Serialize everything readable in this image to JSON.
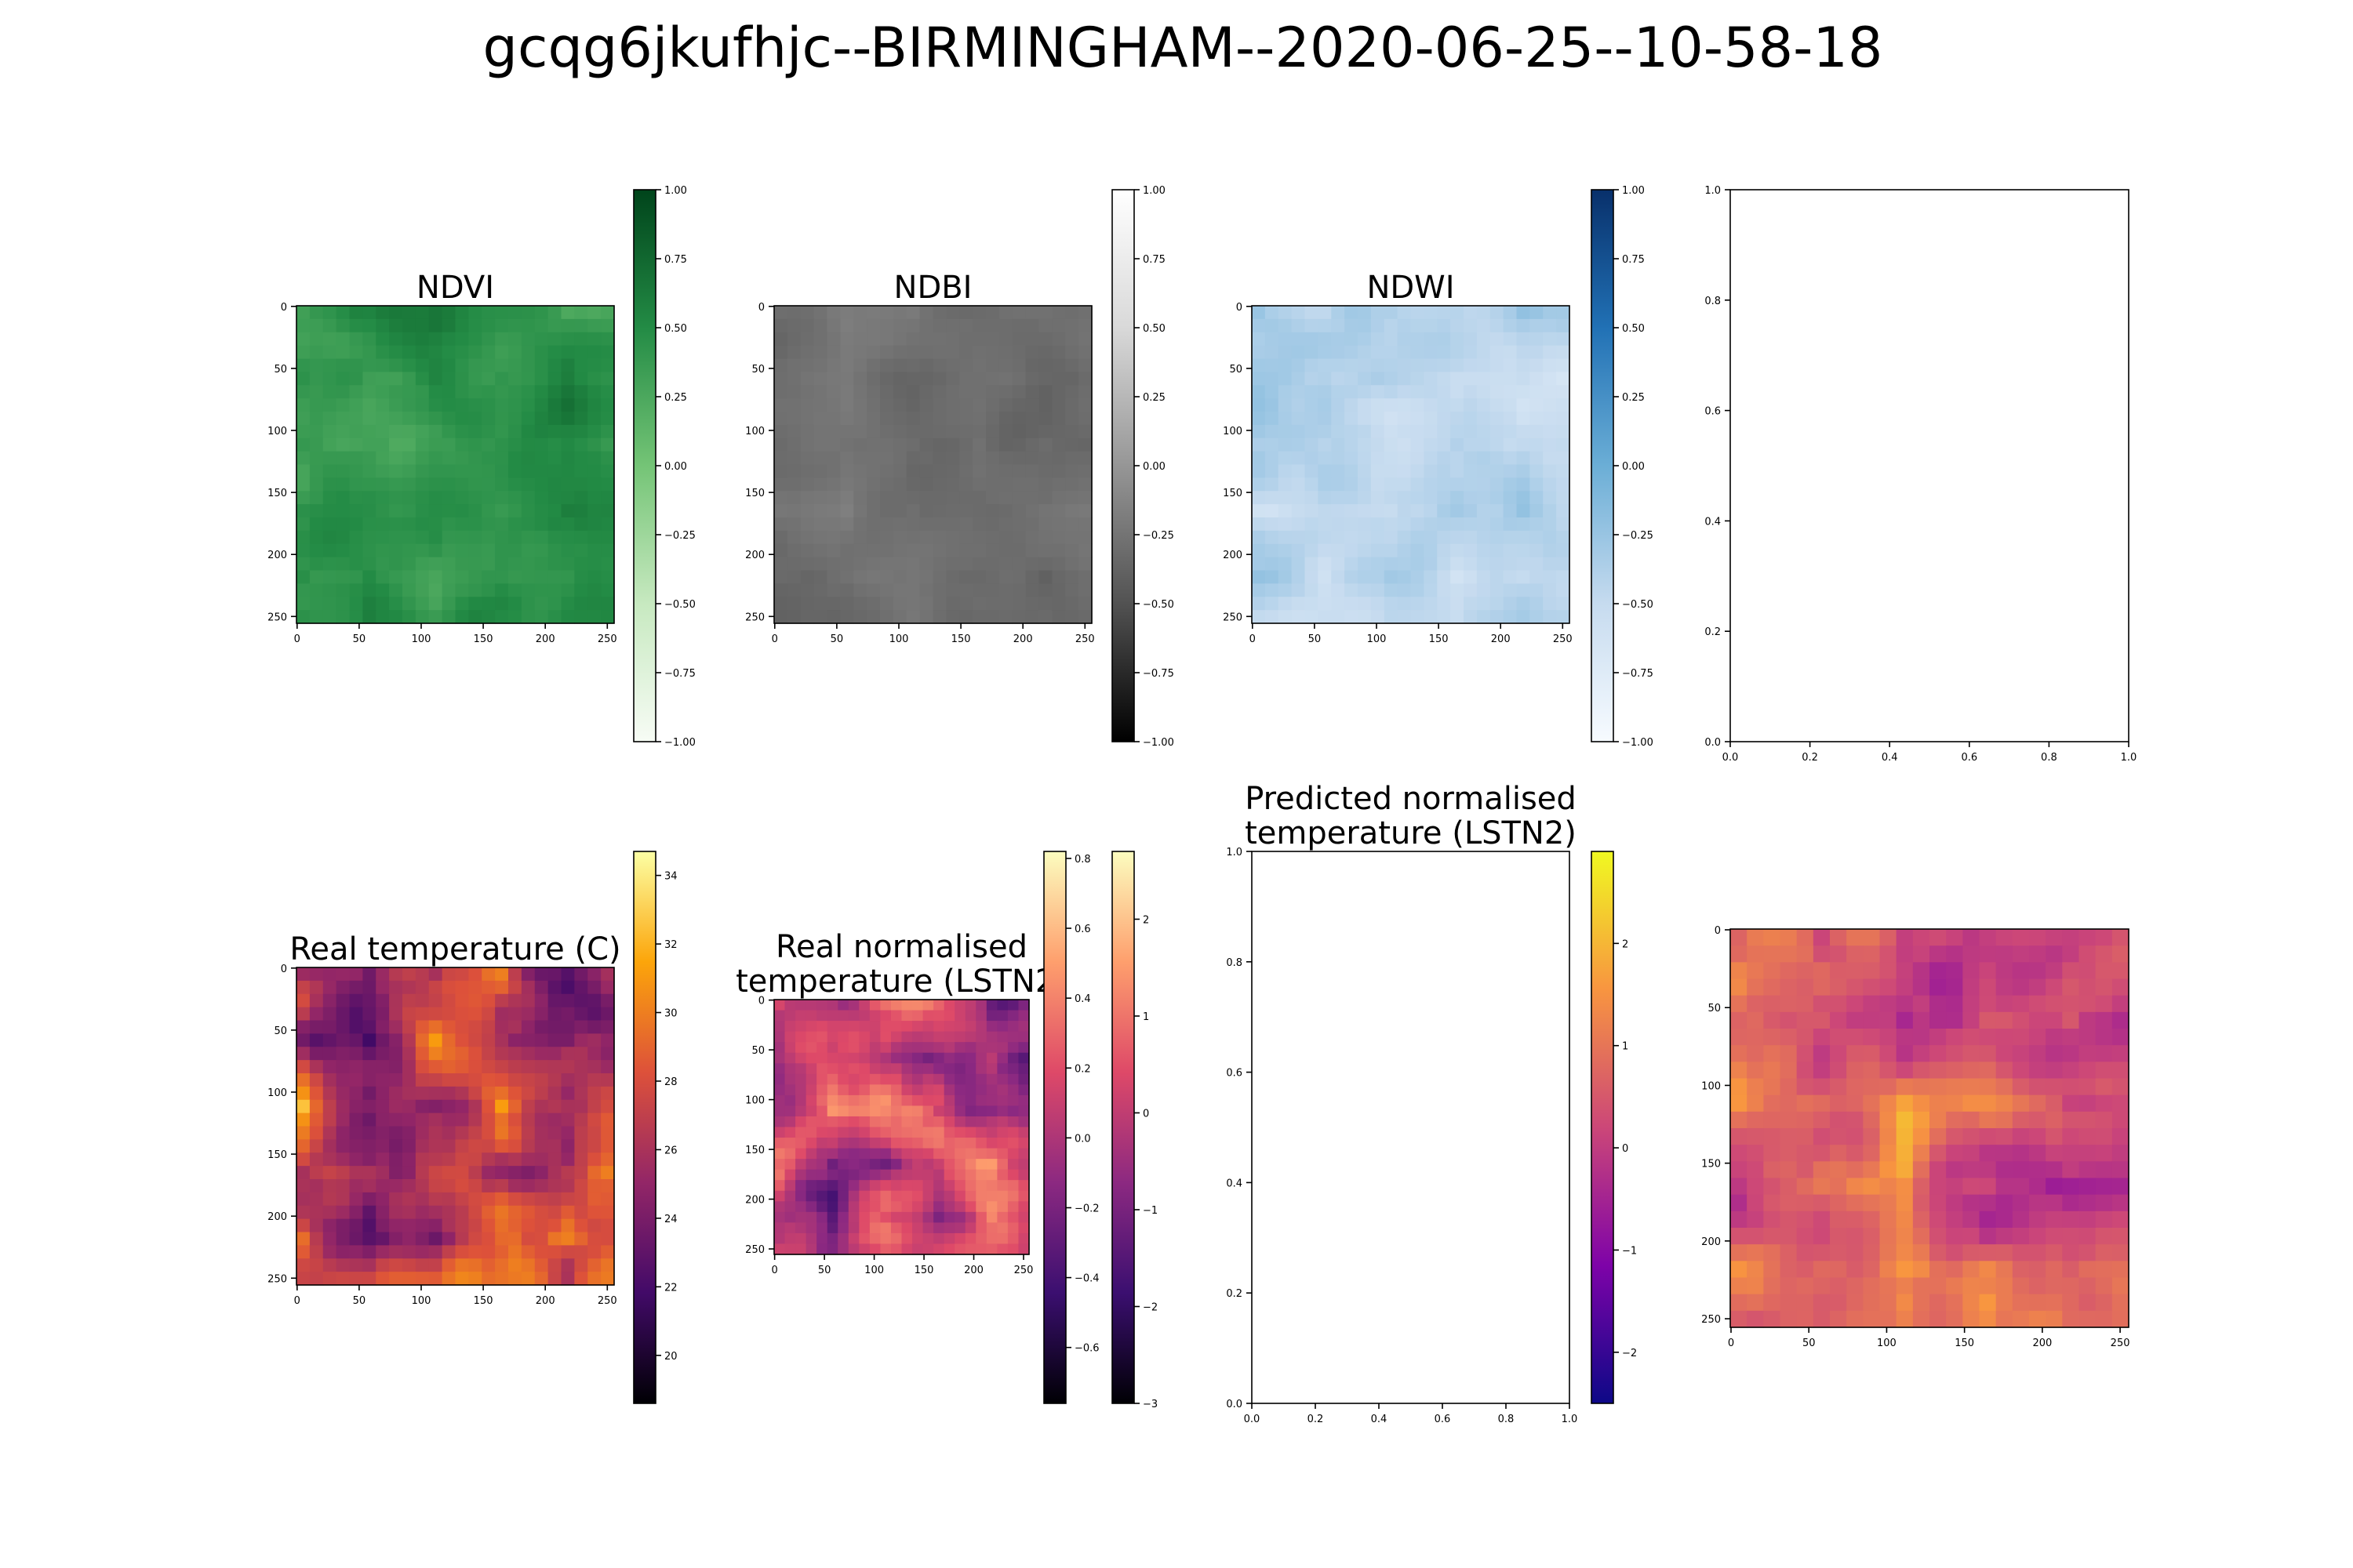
{
  "figure": {
    "title": "gcqg6jkufhjc--BIRMINGHAM--2020-06-25--10-58-18"
  },
  "chart_data": [
    {
      "type": "heatmap",
      "title": "NDVI",
      "colormap": "Greens",
      "xticks": [
        "0",
        "50",
        "100",
        "150",
        "200",
        "250"
      ],
      "yticks": [
        "0",
        "50",
        "100",
        "150",
        "200",
        "250"
      ],
      "xlim": [
        0,
        256
      ],
      "ylim": [
        256,
        0
      ],
      "colorbar": {
        "range": [
          -1.0,
          1.0
        ],
        "ticks": [
          "1.00",
          "0.75",
          "0.50",
          "0.25",
          "0.00",
          "−0.25",
          "−0.50",
          "−0.75",
          "−1.00"
        ]
      },
      "value_range_shown": [
        0.1,
        0.8
      ]
    },
    {
      "type": "heatmap",
      "title": "NDBI",
      "colormap": "Greys_r",
      "xticks": [
        "0",
        "50",
        "100",
        "150",
        "200",
        "250"
      ],
      "yticks": [
        "0",
        "50",
        "100",
        "150",
        "200",
        "250"
      ],
      "xlim": [
        0,
        256
      ],
      "ylim": [
        256,
        0
      ],
      "colorbar": {
        "range": [
          -1.0,
          1.0
        ],
        "ticks": [
          "1.00",
          "0.75",
          "0.50",
          "0.25",
          "0.00",
          "−0.25",
          "−0.50",
          "−0.75",
          "−1.00"
        ]
      },
      "value_range_shown": [
        -0.45,
        -0.15
      ]
    },
    {
      "type": "heatmap",
      "title": "NDWI",
      "colormap": "Blues",
      "xticks": [
        "0",
        "50",
        "100",
        "150",
        "200",
        "250"
      ],
      "yticks": [
        "0",
        "50",
        "100",
        "150",
        "200",
        "250"
      ],
      "xlim": [
        0,
        256
      ],
      "ylim": [
        256,
        0
      ],
      "colorbar": {
        "range": [
          -1.0,
          1.0
        ],
        "ticks": [
          "1.00",
          "0.75",
          "0.50",
          "0.25",
          "0.00",
          "−0.25",
          "−0.50",
          "−0.75",
          "−1.00"
        ]
      },
      "value_range_shown": [
        -0.75,
        -0.1
      ]
    },
    {
      "type": "scatter",
      "title": "",
      "empty": true,
      "xticks": [
        "0.0",
        "0.2",
        "0.4",
        "0.6",
        "0.8",
        "1.0"
      ],
      "yticks": [
        "0.0",
        "0.2",
        "0.4",
        "0.6",
        "0.8",
        "1.0"
      ],
      "xlim": [
        0,
        1
      ],
      "ylim": [
        0,
        1
      ]
    },
    {
      "type": "heatmap",
      "title": "Real temperature (C)",
      "colormap": "inferno",
      "xticks": [
        "0",
        "50",
        "100",
        "150",
        "200",
        "250"
      ],
      "yticks": [
        "0",
        "50",
        "100",
        "150",
        "200",
        "250"
      ],
      "xlim": [
        0,
        256
      ],
      "ylim": [
        256,
        0
      ],
      "colorbar": {
        "range": [
          18.6,
          34.7
        ],
        "ticks": [
          "34",
          "32",
          "30",
          "28",
          "26",
          "24",
          "22",
          "20"
        ]
      }
    },
    {
      "type": "heatmap",
      "title": "Real normalised\ntemperature (LSTN2)",
      "title_lines": [
        "Real normalised",
        "temperature (LSTN2)"
      ],
      "colormap": "magma",
      "xticks": [
        "0",
        "50",
        "100",
        "150",
        "200",
        "250"
      ],
      "yticks": [
        "0",
        "50",
        "100",
        "150",
        "200",
        "250"
      ],
      "xlim": [
        0,
        256
      ],
      "ylim": [
        256,
        0
      ],
      "colorbar": {
        "range": [
          -0.76,
          0.82
        ],
        "ticks": [
          "0.8",
          "0.6",
          "0.4",
          "0.2",
          "0.0",
          "−0.2",
          "−0.4",
          "−0.6"
        ]
      },
      "colorbar2": {
        "range": [
          -3.0,
          2.7
        ],
        "ticks": [
          "2",
          "1",
          "0",
          "−1",
          "−2",
          "−3"
        ]
      }
    },
    {
      "type": "scatter",
      "title": "Predicted normalised\ntemperature (LSTN2)",
      "title_lines": [
        "Predicted normalised",
        "temperature (LSTN2)"
      ],
      "empty": true,
      "xticks": [
        "0.0",
        "0.2",
        "0.4",
        "0.6",
        "0.8",
        "1.0"
      ],
      "yticks": [
        "0.0",
        "0.2",
        "0.4",
        "0.6",
        "0.8",
        "1.0"
      ],
      "xlim": [
        0,
        1
      ],
      "ylim": [
        0,
        1
      ],
      "colorbar": {
        "colormap": "plasma",
        "range": [
          -2.5,
          2.9
        ],
        "ticks": [
          "2",
          "1",
          "0",
          "−1",
          "−2"
        ]
      }
    },
    {
      "type": "heatmap",
      "title": "",
      "colormap": "plasma",
      "xticks": [
        "0",
        "50",
        "100",
        "150",
        "200",
        "250"
      ],
      "yticks": [
        "0",
        "50",
        "100",
        "150",
        "200",
        "250"
      ],
      "xlim": [
        0,
        256
      ],
      "ylim": [
        256,
        0
      ]
    }
  ]
}
